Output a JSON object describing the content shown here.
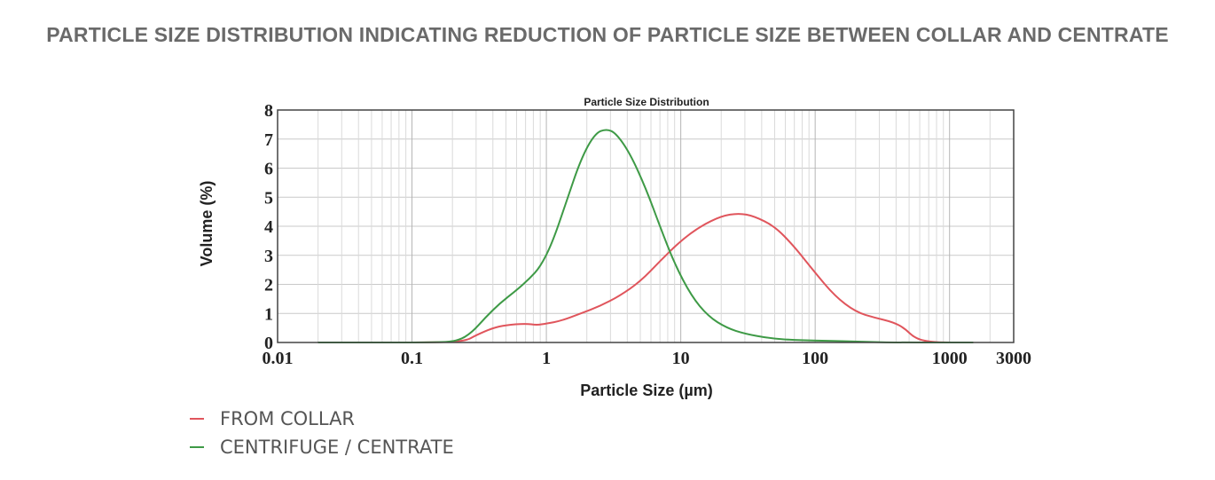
{
  "page": {
    "headline": "PARTICLE SIZE DISTRIBUTION INDICATING REDUCTION OF PARTICLE SIZE BETWEEN COLLAR AND CENTRATE"
  },
  "legend": {
    "items": [
      {
        "label": "FROM COLLAR",
        "color": "#e0555c"
      },
      {
        "label": "CENTRIFUGE / CENTRATE",
        "color": "#3e9a46"
      }
    ]
  },
  "chart_data": {
    "type": "line",
    "title": "Particle Size Distribution",
    "xlabel": "Particle Size (µm)",
    "ylabel": "Volume (%)",
    "x_scale": "log",
    "xlim": [
      0.01,
      3000
    ],
    "ylim": [
      0,
      8
    ],
    "x_ticks": [
      {
        "value": 0.01,
        "label": "0.01"
      },
      {
        "value": 0.1,
        "label": "0.1"
      },
      {
        "value": 1,
        "label": "1"
      },
      {
        "value": 10,
        "label": "10"
      },
      {
        "value": 100,
        "label": "100"
      },
      {
        "value": 1000,
        "label": "1000"
      },
      {
        "value": 3000,
        "label": "3000"
      }
    ],
    "y_ticks": [
      0,
      1,
      2,
      3,
      4,
      5,
      6,
      7,
      8
    ],
    "grid": true,
    "legend_position": "bottom-left",
    "series": [
      {
        "name": "FROM COLLAR",
        "color": "#e0555c",
        "points": [
          [
            0.02,
            0
          ],
          [
            0.15,
            0
          ],
          [
            0.25,
            0.05
          ],
          [
            0.3,
            0.25
          ],
          [
            0.4,
            0.5
          ],
          [
            0.5,
            0.6
          ],
          [
            0.7,
            0.65
          ],
          [
            0.85,
            0.6
          ],
          [
            1.0,
            0.65
          ],
          [
            1.3,
            0.75
          ],
          [
            1.8,
            1.0
          ],
          [
            2.5,
            1.25
          ],
          [
            3.5,
            1.6
          ],
          [
            5,
            2.1
          ],
          [
            7,
            2.8
          ],
          [
            10,
            3.5
          ],
          [
            14,
            4.0
          ],
          [
            20,
            4.35
          ],
          [
            27,
            4.45
          ],
          [
            35,
            4.35
          ],
          [
            50,
            4.0
          ],
          [
            70,
            3.3
          ],
          [
            100,
            2.4
          ],
          [
            140,
            1.6
          ],
          [
            200,
            1.05
          ],
          [
            280,
            0.85
          ],
          [
            380,
            0.7
          ],
          [
            460,
            0.5
          ],
          [
            550,
            0.15
          ],
          [
            700,
            0.02
          ],
          [
            1000,
            0
          ],
          [
            1500,
            0
          ]
        ]
      },
      {
        "name": "CENTRIFUGE / CENTRATE",
        "color": "#3e9a46",
        "points": [
          [
            0.02,
            0
          ],
          [
            0.15,
            0
          ],
          [
            0.22,
            0.05
          ],
          [
            0.28,
            0.35
          ],
          [
            0.35,
            0.85
          ],
          [
            0.45,
            1.35
          ],
          [
            0.6,
            1.8
          ],
          [
            0.75,
            2.2
          ],
          [
            0.9,
            2.6
          ],
          [
            1.1,
            3.4
          ],
          [
            1.4,
            4.8
          ],
          [
            1.8,
            6.3
          ],
          [
            2.3,
            7.2
          ],
          [
            2.8,
            7.35
          ],
          [
            3.3,
            7.2
          ],
          [
            4.2,
            6.5
          ],
          [
            5.5,
            5.3
          ],
          [
            7,
            4.0
          ],
          [
            9,
            2.7
          ],
          [
            12,
            1.6
          ],
          [
            16,
            0.9
          ],
          [
            22,
            0.5
          ],
          [
            30,
            0.3
          ],
          [
            45,
            0.15
          ],
          [
            70,
            0.08
          ],
          [
            150,
            0.05
          ],
          [
            250,
            0.02
          ],
          [
            400,
            0
          ],
          [
            1000,
            0
          ],
          [
            1500,
            0
          ]
        ]
      }
    ]
  }
}
